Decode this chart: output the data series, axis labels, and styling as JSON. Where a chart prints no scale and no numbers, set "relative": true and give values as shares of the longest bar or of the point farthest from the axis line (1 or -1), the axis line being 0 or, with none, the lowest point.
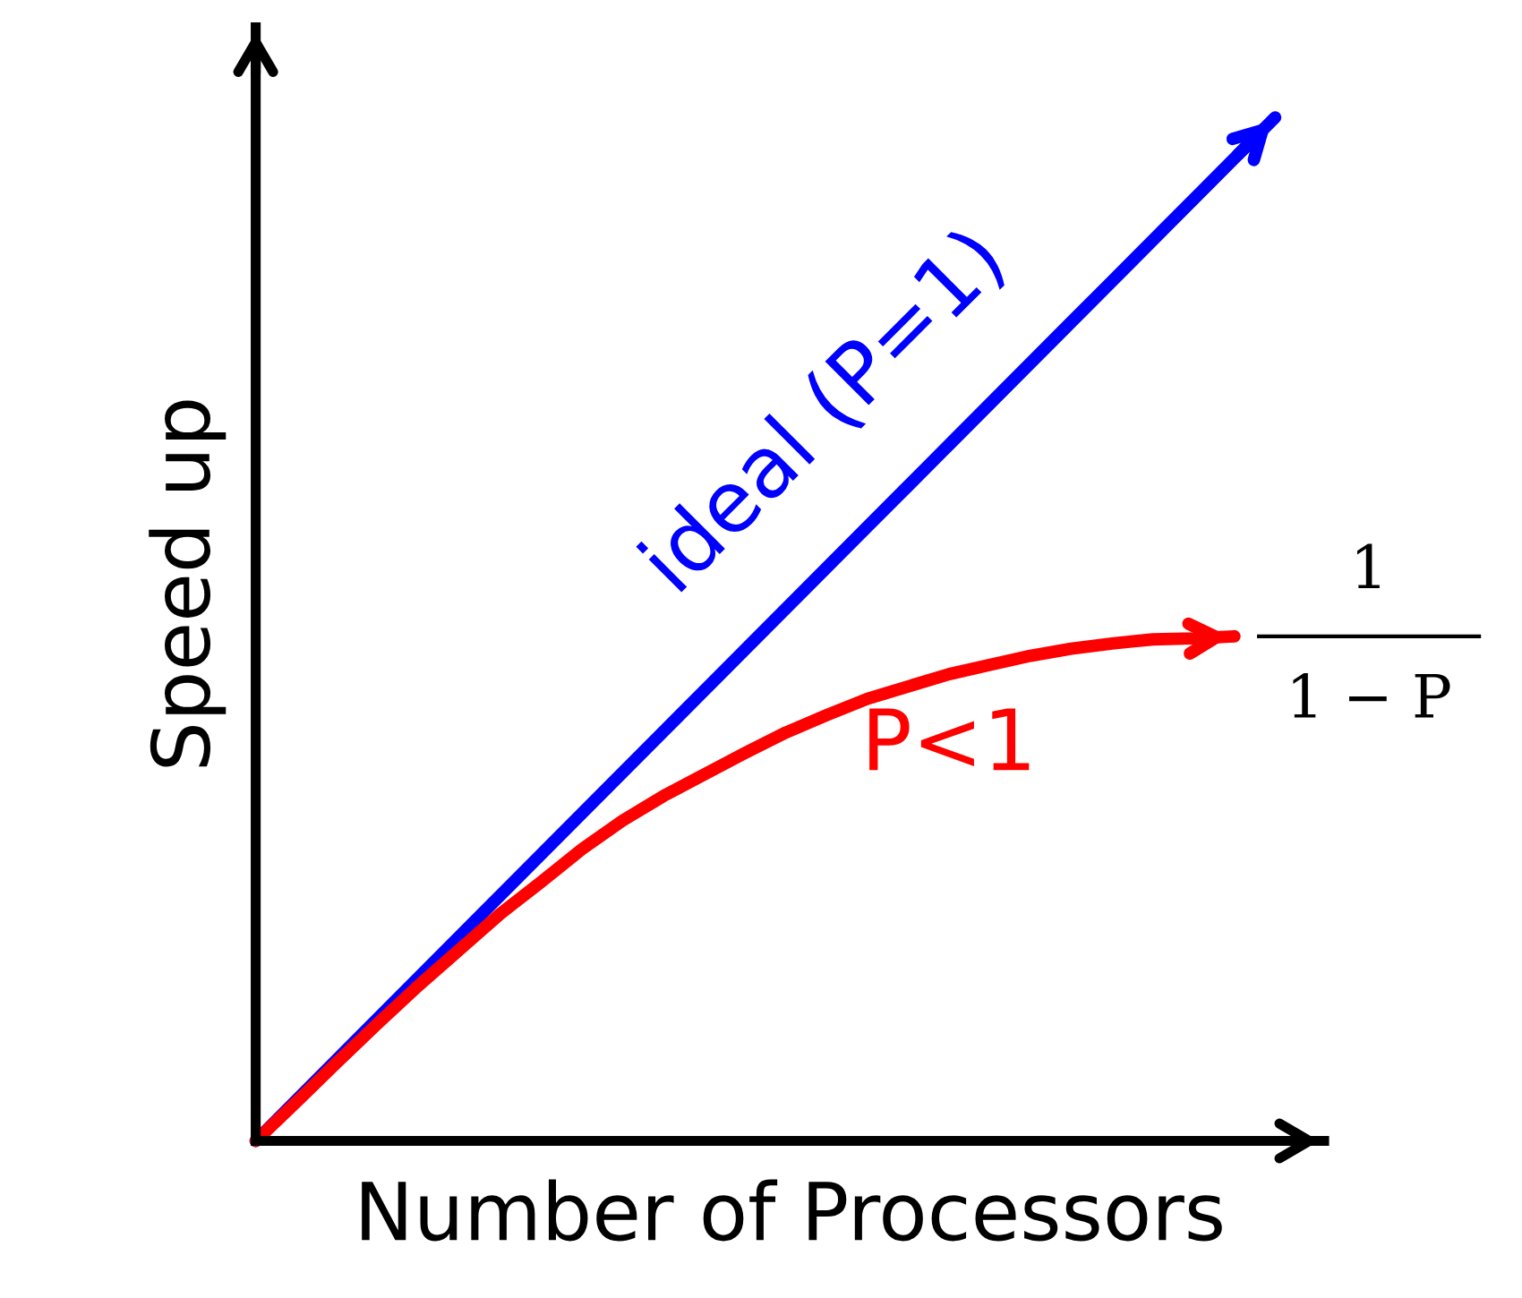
{
  "chart_data": {
    "type": "line",
    "relative": true,
    "xlabel": "Number of Processors",
    "ylabel": "Speed up",
    "legend": false,
    "grid": false,
    "categories": [
      null,
      null,
      null,
      null,
      null,
      null,
      null,
      null,
      null,
      null,
      null,
      null,
      null,
      null,
      null,
      null,
      null,
      null,
      null,
      null,
      null,
      null,
      null,
      null,
      null,
      null
    ],
    "series": [
      {
        "name": "ideal (P=1)",
        "color": "#0000ff",
        "values": [
          0,
          0.04,
          0.08,
          0.12,
          0.16,
          0.2,
          0.24,
          0.28,
          0.32,
          0.36,
          0.4,
          0.44,
          0.48,
          0.52,
          0.56,
          0.6,
          0.64,
          0.68,
          0.72,
          0.76,
          0.8,
          0.84,
          0.88,
          0.92,
          0.96,
          1
        ]
      },
      {
        "name": "P<1",
        "color": "#ff0000",
        "values": [
          0,
          0.038,
          0.077,
          0.115,
          0.152,
          0.187,
          0.222,
          0.253,
          0.285,
          0.313,
          0.337,
          0.358,
          0.379,
          0.399,
          0.416,
          0.432,
          0.444,
          0.456,
          0.465,
          0.474,
          0.481,
          0.486,
          0.49,
          0.491,
          0.493,
          null
        ]
      }
    ],
    "annotations": [
      "1",
      "1 − P"
    ]
  }
}
